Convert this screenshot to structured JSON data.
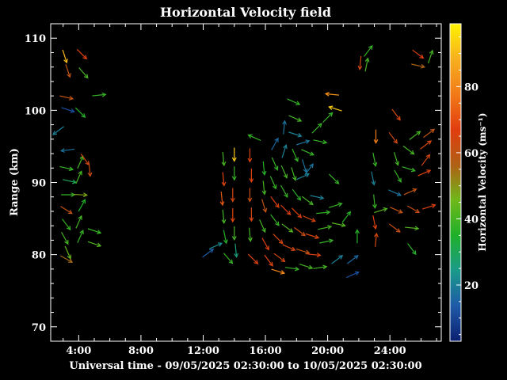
{
  "chart_data": {
    "type": "vector-field",
    "title": "Horizontal Velocity field",
    "xlabel": "Universal time - 09/05/2025 02:30:00 to 10/05/2025 02:30:00",
    "ylabel": "Range (km)",
    "xlim": [
      2.2,
      27.3
    ],
    "ylim": [
      68,
      112
    ],
    "xticks": [
      4,
      8,
      12,
      16,
      20,
      24
    ],
    "xtick_labels": [
      "4:00",
      "8:00",
      "12:00",
      "16:00",
      "20:00",
      "24:00"
    ],
    "yticks": [
      70,
      80,
      90,
      100,
      110
    ],
    "ytick_labels": [
      "70",
      "80",
      "90",
      "100",
      "110"
    ],
    "colorbar": {
      "label": "Horizontal Velocity (ms⁻¹)",
      "ticks": [
        20,
        40,
        60,
        80
      ],
      "range": [
        3,
        99
      ],
      "colormap": "jet",
      "stops": [
        "#0b1f70",
        "#1e5aa8",
        "#1a9a8a",
        "#1fb02a",
        "#6fb81a",
        "#b06014",
        "#e03d0f",
        "#f27a18",
        "#f7b020",
        "#fff200"
      ]
    },
    "grid": false,
    "vectors": [
      {
        "t": 3.1,
        "r": 107.5,
        "u": 0.3,
        "v": -0.95,
        "speed": 90
      },
      {
        "t": 3.3,
        "r": 105.5,
        "u": 0.3,
        "v": -0.9,
        "speed": 60
      },
      {
        "t": 4.2,
        "r": 107.8,
        "u": 0.7,
        "v": -0.7,
        "speed": 68
      },
      {
        "t": 4.3,
        "r": 105.2,
        "u": 0.6,
        "v": -0.7,
        "speed": 40
      },
      {
        "t": 3.2,
        "r": 101.8,
        "u": 0.9,
        "v": -0.2,
        "speed": 60
      },
      {
        "t": 5.3,
        "r": 102.1,
        "u": 1,
        "v": 0.1,
        "speed": 38
      },
      {
        "t": 3.3,
        "r": 100.1,
        "u": 0.9,
        "v": -0.3,
        "speed": 12
      },
      {
        "t": 4.1,
        "r": 99.7,
        "u": 0.7,
        "v": -0.7,
        "speed": 36
      },
      {
        "t": 2.7,
        "r": 97.2,
        "u": -0.8,
        "v": -0.6,
        "speed": 20
      },
      {
        "t": 3.3,
        "r": 94.5,
        "u": -0.8,
        "v": -0.1,
        "speed": 18
      },
      {
        "t": 3.2,
        "r": 92,
        "u": 0.9,
        "v": -0.2,
        "speed": 38
      },
      {
        "t": 4.1,
        "r": 92.8,
        "u": 0.4,
        "v": 0.9,
        "speed": 40
      },
      {
        "t": 4.4,
        "r": 93.2,
        "u": 0.6,
        "v": -0.8,
        "speed": 64
      },
      {
        "t": 3.4,
        "r": 90.2,
        "u": 0.9,
        "v": -0.2,
        "speed": 30
      },
      {
        "t": 4,
        "r": 90.7,
        "u": 0.4,
        "v": 0.9,
        "speed": 40
      },
      {
        "t": 4.7,
        "r": 91.8,
        "u": 0.1,
        "v": -1,
        "speed": 62
      },
      {
        "t": 3.3,
        "r": 88.3,
        "u": 1,
        "v": 0,
        "speed": 38
      },
      {
        "t": 4.1,
        "r": 88.3,
        "u": 1,
        "v": -0.05,
        "speed": 48
      },
      {
        "t": 3.2,
        "r": 86.2,
        "u": 0.8,
        "v": -0.5,
        "speed": 60
      },
      {
        "t": 4.2,
        "r": 86.8,
        "u": 0.5,
        "v": 0.9,
        "speed": 35
      },
      {
        "t": 3.2,
        "r": 84.2,
        "u": 0.6,
        "v": -0.8,
        "speed": 38
      },
      {
        "t": 4,
        "r": 84.5,
        "u": 0.4,
        "v": 0.9,
        "speed": 40
      },
      {
        "t": 3.1,
        "r": 82.3,
        "u": 0.5,
        "v": -0.9,
        "speed": 40
      },
      {
        "t": 4.1,
        "r": 82.5,
        "u": 0.4,
        "v": 0.9,
        "speed": 38
      },
      {
        "t": 5,
        "r": 83.3,
        "u": 0.9,
        "v": -0.3,
        "speed": 38
      },
      {
        "t": 5,
        "r": 81.5,
        "u": 0.9,
        "v": -0.3,
        "speed": 42
      },
      {
        "t": 3.3,
        "r": 80.3,
        "u": 0.4,
        "v": -0.9,
        "speed": 44
      },
      {
        "t": 3.2,
        "r": 79.4,
        "u": 0.9,
        "v": -0.5,
        "speed": 55
      },
      {
        "t": 12.3,
        "r": 80.2,
        "u": 0.8,
        "v": 0.6,
        "speed": 14
      },
      {
        "t": 12.8,
        "r": 81.2,
        "u": 0.9,
        "v": 0.4,
        "speed": 22
      },
      {
        "t": 13.6,
        "r": 79.5,
        "u": 0.6,
        "v": -0.7,
        "speed": 38
      },
      {
        "t": 13.3,
        "r": 93.3,
        "u": 0.1,
        "v": -1,
        "speed": 40
      },
      {
        "t": 14,
        "r": 93.9,
        "u": 0,
        "v": -1,
        "speed": 92
      },
      {
        "t": 13.3,
        "r": 90.5,
        "u": 0.1,
        "v": -1,
        "speed": 68
      },
      {
        "t": 14,
        "r": 91.3,
        "u": 0,
        "v": -1,
        "speed": 38
      },
      {
        "t": 13.2,
        "r": 87.8,
        "u": 0.1,
        "v": -1,
        "speed": 72
      },
      {
        "t": 13.9,
        "r": 88.3,
        "u": 0,
        "v": -1,
        "speed": 64
      },
      {
        "t": 13.3,
        "r": 85.3,
        "u": 0.1,
        "v": -1,
        "speed": 40
      },
      {
        "t": 13.9,
        "r": 85.5,
        "u": 0,
        "v": -1,
        "speed": 68
      },
      {
        "t": 13.4,
        "r": 82.5,
        "u": 0.2,
        "v": -1,
        "speed": 36
      },
      {
        "t": 14,
        "r": 83,
        "u": 0,
        "v": -1,
        "speed": 40
      },
      {
        "t": 14.1,
        "r": 80.6,
        "u": 0.1,
        "v": -1,
        "speed": 26
      },
      {
        "t": 15,
        "r": 93.8,
        "u": 0,
        "v": -1,
        "speed": 66
      },
      {
        "t": 15.1,
        "r": 91,
        "u": 0,
        "v": -1,
        "speed": 68
      },
      {
        "t": 15,
        "r": 88.3,
        "u": 0,
        "v": -1,
        "speed": 62
      },
      {
        "t": 15.1,
        "r": 85.6,
        "u": 0,
        "v": -1,
        "speed": 64
      },
      {
        "t": 15,
        "r": 82.8,
        "u": 0.1,
        "v": -1,
        "speed": 40
      },
      {
        "t": 15.2,
        "r": 79.4,
        "u": 0.7,
        "v": -0.7,
        "speed": 68
      },
      {
        "t": 15.9,
        "r": 92,
        "u": 0.1,
        "v": -1,
        "speed": 36
      },
      {
        "t": 15.9,
        "r": 89.3,
        "u": 0.1,
        "v": -1,
        "speed": 40
      },
      {
        "t": 15.9,
        "r": 86.8,
        "u": 0.3,
        "v": -1,
        "speed": 60
      },
      {
        "t": 15.8,
        "r": 84,
        "u": 0.4,
        "v": -0.9,
        "speed": 40
      },
      {
        "t": 16,
        "r": 81.5,
        "u": 0.5,
        "v": -0.9,
        "speed": 66
      },
      {
        "t": 16.2,
        "r": 79.2,
        "u": 0.6,
        "v": -0.8,
        "speed": 68
      },
      {
        "t": 16.8,
        "r": 77.7,
        "u": 0.95,
        "v": -0.3,
        "speed": 80
      },
      {
        "t": 16.6,
        "r": 95.3,
        "u": 0.5,
        "v": 0.9,
        "speed": 16
      },
      {
        "t": 16.6,
        "r": 92.6,
        "u": 0.4,
        "v": -0.9,
        "speed": 38
      },
      {
        "t": 16.5,
        "r": 90,
        "u": 0.4,
        "v": -0.9,
        "speed": 38
      },
      {
        "t": 16.6,
        "r": 87.3,
        "u": 0.6,
        "v": -0.8,
        "speed": 66
      },
      {
        "t": 16.6,
        "r": 84.8,
        "u": 0.6,
        "v": -0.8,
        "speed": 38
      },
      {
        "t": 16.8,
        "r": 82.2,
        "u": 0.7,
        "v": -0.7,
        "speed": 64
      },
      {
        "t": 16.9,
        "r": 79.6,
        "u": 0.8,
        "v": -0.6,
        "speed": 64
      },
      {
        "t": 15.3,
        "r": 96.2,
        "u": -0.9,
        "v": 0.4,
        "speed": 38
      },
      {
        "t": 17.2,
        "r": 97.6,
        "u": 0.1,
        "v": 1,
        "speed": 18
      },
      {
        "t": 17.2,
        "r": 94.3,
        "u": 0.3,
        "v": 0.95,
        "speed": 20
      },
      {
        "t": 17.2,
        "r": 91.5,
        "u": 0.4,
        "v": -0.9,
        "speed": 40
      },
      {
        "t": 17.2,
        "r": 88.8,
        "u": 0.5,
        "v": -0.9,
        "speed": 38
      },
      {
        "t": 17.3,
        "r": 86.2,
        "u": 0.7,
        "v": -0.7,
        "speed": 66
      },
      {
        "t": 17.4,
        "r": 83.7,
        "u": 0.8,
        "v": -0.6,
        "speed": 42
      },
      {
        "t": 17.5,
        "r": 81,
        "u": 0.9,
        "v": -0.4,
        "speed": 64
      },
      {
        "t": 17.7,
        "r": 78.1,
        "u": 1,
        "v": -0.15,
        "speed": 38
      },
      {
        "t": 17.8,
        "r": 101.2,
        "u": 0.9,
        "v": -0.4,
        "speed": 38
      },
      {
        "t": 17.9,
        "r": 98.9,
        "u": 0.9,
        "v": -0.4,
        "speed": 40
      },
      {
        "t": 17.9,
        "r": 96.7,
        "u": 0.95,
        "v": -0.3,
        "speed": 20
      },
      {
        "t": 17.9,
        "r": 93.8,
        "u": 0.4,
        "v": -0.9,
        "speed": 38
      },
      {
        "t": 17.8,
        "r": 91.2,
        "u": 0.3,
        "v": -0.95,
        "speed": 40
      },
      {
        "t": 18,
        "r": 88.3,
        "u": 0.6,
        "v": -0.8,
        "speed": 36
      },
      {
        "t": 18,
        "r": 85.8,
        "u": 0.7,
        "v": -0.7,
        "speed": 66
      },
      {
        "t": 18.2,
        "r": 83.2,
        "u": 0.8,
        "v": -0.6,
        "speed": 62
      },
      {
        "t": 18.4,
        "r": 80.5,
        "u": 0.95,
        "v": -0.3,
        "speed": 60
      },
      {
        "t": 18.6,
        "r": 78.4,
        "u": 0.95,
        "v": -0.3,
        "speed": 40
      },
      {
        "t": 18.4,
        "r": 95.5,
        "u": 0.95,
        "v": 0.3,
        "speed": 18
      },
      {
        "t": 18.5,
        "r": 92.3,
        "u": 0.3,
        "v": -0.95,
        "speed": 18
      },
      {
        "t": 18.4,
        "r": 90.8,
        "u": 0.9,
        "v": 0.4,
        "speed": 20
      },
      {
        "t": 18.7,
        "r": 94.2,
        "u": 0.9,
        "v": -0.4,
        "speed": 38
      },
      {
        "t": 18.8,
        "r": 91.8,
        "u": 0.6,
        "v": 0.8,
        "speed": 18
      },
      {
        "t": 18.7,
        "r": 87.5,
        "u": 0.8,
        "v": -0.6,
        "speed": 40
      },
      {
        "t": 18.8,
        "r": 85,
        "u": 0.9,
        "v": -0.4,
        "speed": 64
      },
      {
        "t": 19,
        "r": 82.6,
        "u": 0.95,
        "v": -0.3,
        "speed": 64
      },
      {
        "t": 19.1,
        "r": 80,
        "u": 1,
        "v": -0.1,
        "speed": 66
      },
      {
        "t": 19.5,
        "r": 78.2,
        "u": 1,
        "v": 0.15,
        "speed": 40
      },
      {
        "t": 19.3,
        "r": 97.5,
        "u": 0.7,
        "v": 0.7,
        "speed": 38
      },
      {
        "t": 19.5,
        "r": 95.7,
        "u": 0.95,
        "v": -0.2,
        "speed": 38
      },
      {
        "t": 19.3,
        "r": 88,
        "u": 0.95,
        "v": -0.2,
        "speed": 20
      },
      {
        "t": 19.7,
        "r": 85.8,
        "u": 1,
        "v": 0.1,
        "speed": 38
      },
      {
        "t": 19.8,
        "r": 83.7,
        "u": 0.95,
        "v": 0.2,
        "speed": 40
      },
      {
        "t": 19.9,
        "r": 81.8,
        "u": 0.95,
        "v": 0.2,
        "speed": 38
      },
      {
        "t": 20,
        "r": 99,
        "u": 0.7,
        "v": 0.7,
        "speed": 38
      },
      {
        "t": 20.3,
        "r": 102.2,
        "u": -1,
        "v": 0.1,
        "speed": 82
      },
      {
        "t": 20.5,
        "r": 100.2,
        "u": -0.95,
        "v": 0.3,
        "speed": 92
      },
      {
        "t": 20.4,
        "r": 90.5,
        "u": 0.7,
        "v": -0.7,
        "speed": 38
      },
      {
        "t": 20.5,
        "r": 86.8,
        "u": 0.95,
        "v": 0.3,
        "speed": 38
      },
      {
        "t": 20.7,
        "r": 84.2,
        "u": 0.95,
        "v": -0.2,
        "speed": 42
      },
      {
        "t": 21.2,
        "r": 85.2,
        "u": 0.6,
        "v": 0.8,
        "speed": 36
      },
      {
        "t": 20.6,
        "r": 79.3,
        "u": 0.8,
        "v": 0.6,
        "speed": 20
      },
      {
        "t": 21.6,
        "r": 79.3,
        "u": 0.8,
        "v": 0.6,
        "speed": 16
      },
      {
        "t": 21.6,
        "r": 77.2,
        "u": 0.9,
        "v": 0.4,
        "speed": 12
      },
      {
        "t": 21.9,
        "r": 82.5,
        "u": 0,
        "v": 1,
        "speed": 36
      },
      {
        "t": 22.1,
        "r": 106.6,
        "u": -0.1,
        "v": -1,
        "speed": 64
      },
      {
        "t": 22.5,
        "r": 106.3,
        "u": 0.2,
        "v": 1,
        "speed": 40
      },
      {
        "t": 22.6,
        "r": 108.2,
        "u": 0.6,
        "v": 0.8,
        "speed": 38
      },
      {
        "t": 23.1,
        "r": 96.4,
        "u": 0,
        "v": -1,
        "speed": 78
      },
      {
        "t": 23,
        "r": 93.2,
        "u": 0.2,
        "v": -1,
        "speed": 38
      },
      {
        "t": 22.9,
        "r": 90.6,
        "u": 0.2,
        "v": -1,
        "speed": 20
      },
      {
        "t": 23,
        "r": 87.4,
        "u": 0.1,
        "v": -1,
        "speed": 38
      },
      {
        "t": 23,
        "r": 84.5,
        "u": 0.2,
        "v": -1,
        "speed": 66
      },
      {
        "t": 23.1,
        "r": 82,
        "u": 0.1,
        "v": 1,
        "speed": 64
      },
      {
        "t": 23.4,
        "r": 86.1,
        "u": 0.95,
        "v": 0.3,
        "speed": 42
      },
      {
        "t": 24.4,
        "r": 99.4,
        "u": 0.6,
        "v": -0.8,
        "speed": 64
      },
      {
        "t": 24.2,
        "r": 96.2,
        "u": 0.6,
        "v": -0.8,
        "speed": 64
      },
      {
        "t": 24.4,
        "r": 93.3,
        "u": 0.3,
        "v": -1,
        "speed": 40
      },
      {
        "t": 24.5,
        "r": 90.9,
        "u": 0.5,
        "v": -0.9,
        "speed": 38
      },
      {
        "t": 24.3,
        "r": 88.6,
        "u": 0.9,
        "v": -0.4,
        "speed": 18
      },
      {
        "t": 24.4,
        "r": 86.2,
        "u": 0.9,
        "v": -0.4,
        "speed": 60
      },
      {
        "t": 24.3,
        "r": 83.7,
        "u": 0.8,
        "v": -0.6,
        "speed": 62
      },
      {
        "t": 25.2,
        "r": 91.9,
        "u": 0.95,
        "v": -0.3,
        "speed": 38
      },
      {
        "t": 25.3,
        "r": 88.7,
        "u": 0.9,
        "v": 0.4,
        "speed": 60
      },
      {
        "t": 25.5,
        "r": 86.3,
        "u": 0.9,
        "v": -0.5,
        "speed": 62
      },
      {
        "t": 25.2,
        "r": 94.5,
        "u": 0.8,
        "v": -0.6,
        "speed": 40
      },
      {
        "t": 25.6,
        "r": 96.5,
        "u": 0.8,
        "v": 0.6,
        "speed": 40
      },
      {
        "t": 25.4,
        "r": 83.7,
        "u": 1,
        "v": -0.1,
        "speed": 42
      },
      {
        "t": 25.4,
        "r": 80.8,
        "u": 0.6,
        "v": -0.8,
        "speed": 36
      },
      {
        "t": 25.8,
        "r": 107.8,
        "u": 0.8,
        "v": -0.6,
        "speed": 66
      },
      {
        "t": 25.8,
        "r": 106.2,
        "u": 0.9,
        "v": -0.2,
        "speed": 56
      },
      {
        "t": 26.6,
        "r": 107.4,
        "u": 0.3,
        "v": 0.9,
        "speed": 40
      },
      {
        "t": 26.3,
        "r": 95.2,
        "u": 0.8,
        "v": 0.6,
        "speed": 64
      },
      {
        "t": 26.3,
        "r": 93.1,
        "u": 0.6,
        "v": 0.8,
        "speed": 64
      },
      {
        "t": 26.2,
        "r": 91.3,
        "u": 0.9,
        "v": 0.4,
        "speed": 66
      },
      {
        "t": 26.5,
        "r": 96.8,
        "u": 0.8,
        "v": 0.6,
        "speed": 60
      },
      {
        "t": 26.5,
        "r": 86.6,
        "u": 0.95,
        "v": 0.3,
        "speed": 66
      }
    ]
  }
}
